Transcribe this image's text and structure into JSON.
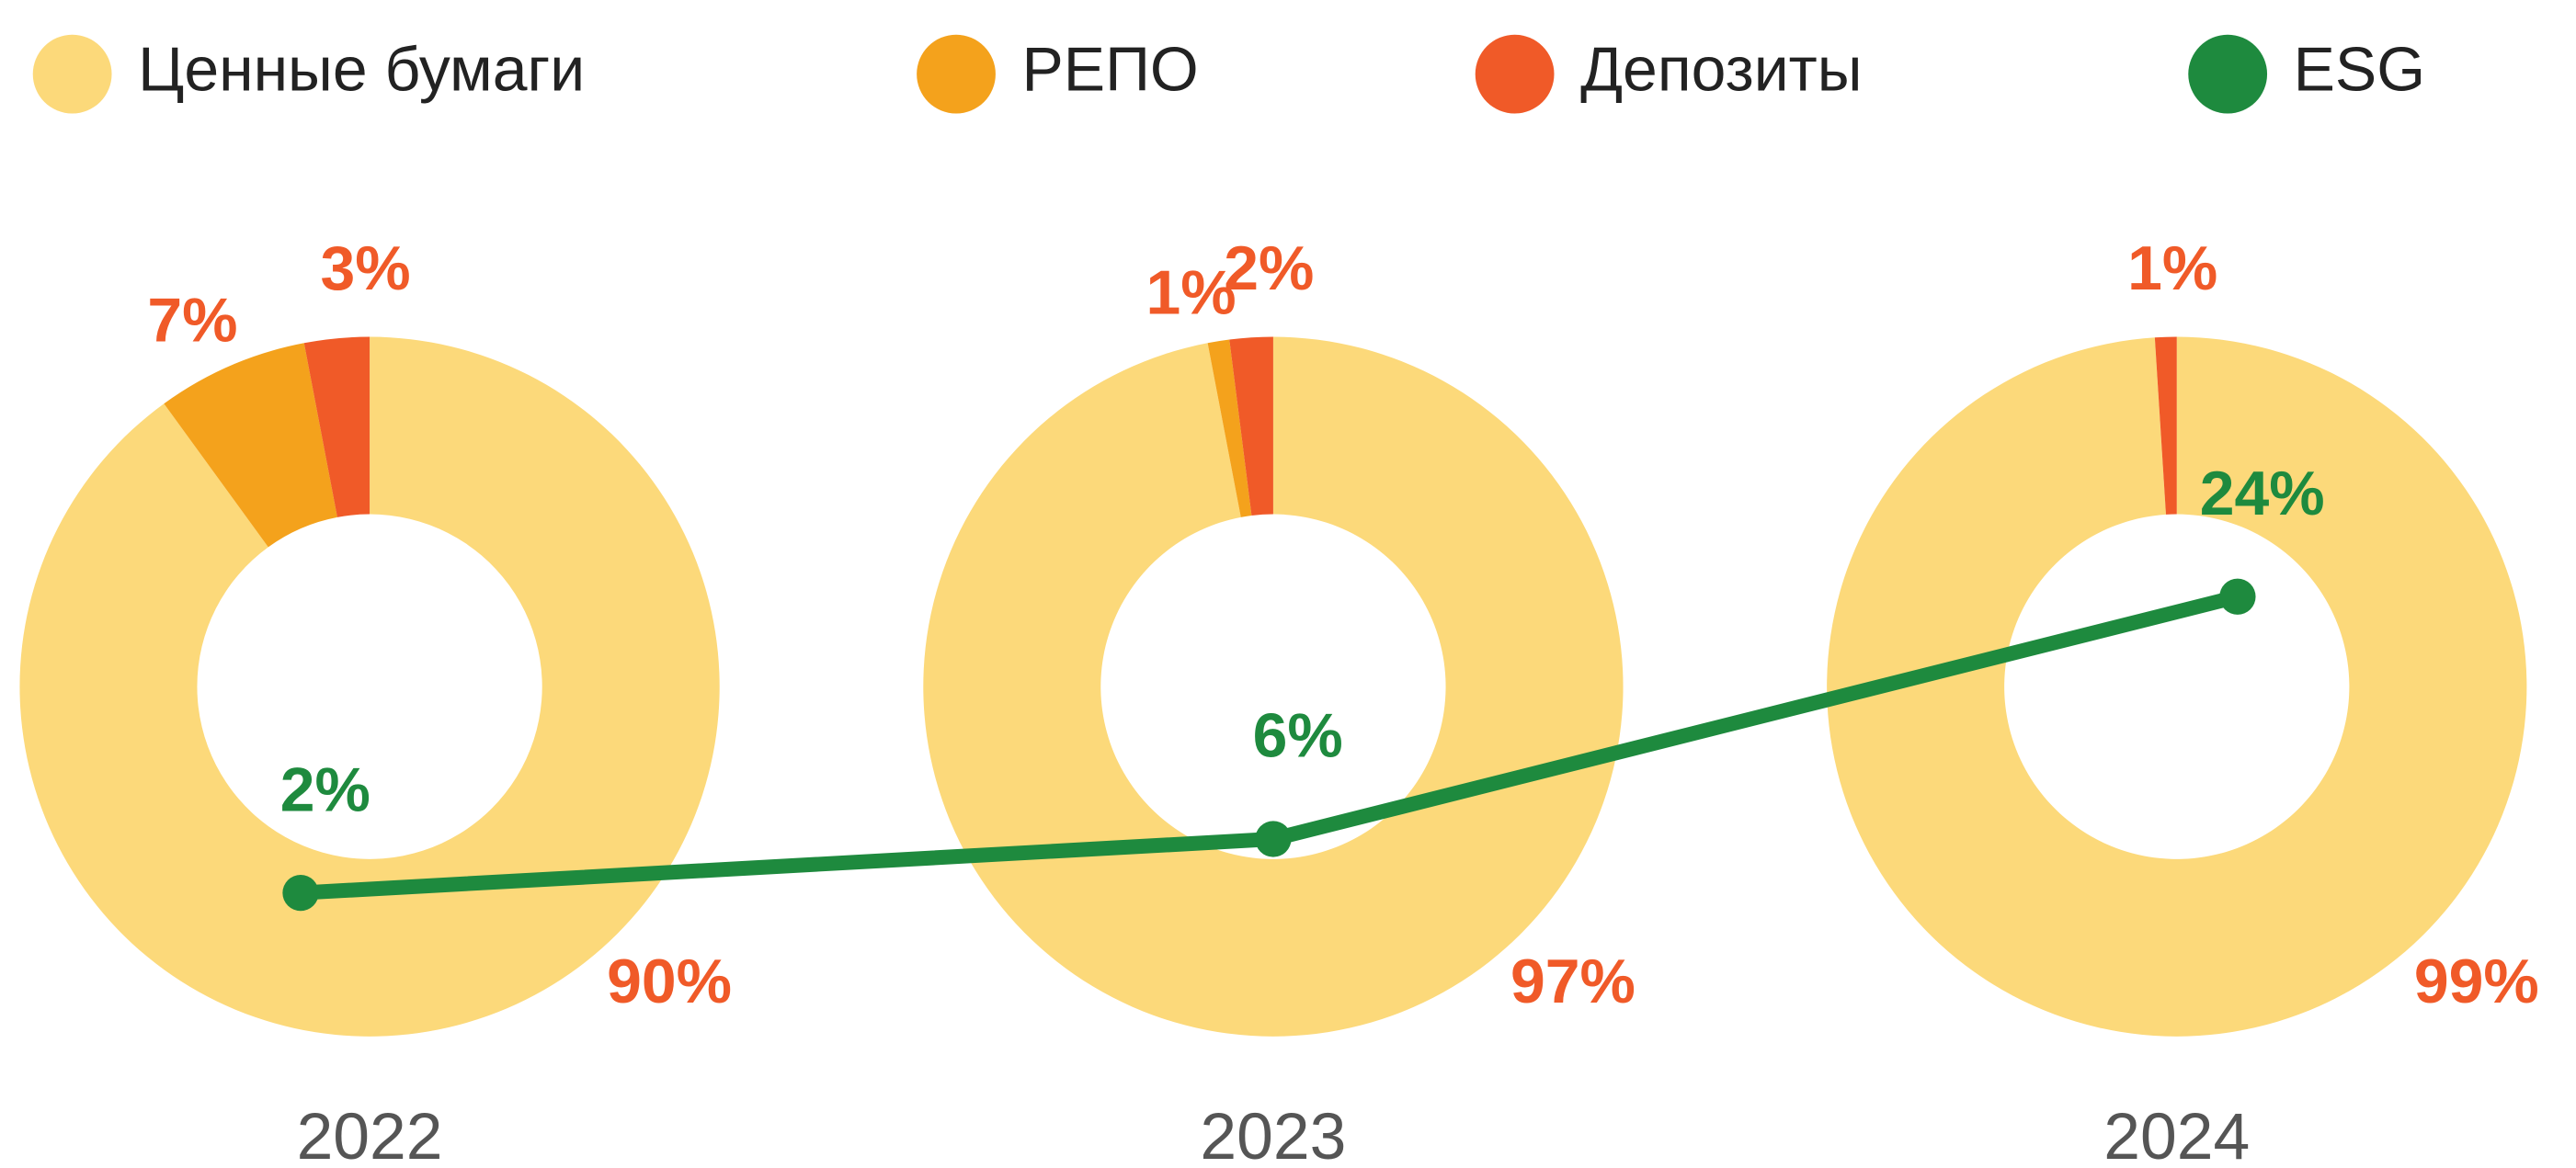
{
  "chart_data": {
    "type": "donut",
    "categories": [
      "2022",
      "2023",
      "2024"
    ],
    "series": [
      {
        "name": "Ценные бумаги",
        "color": "#fcd97a",
        "values": [
          90,
          97,
          99
        ],
        "value_labels": [
          "90%",
          "97%",
          "99%"
        ]
      },
      {
        "name": "РЕПО",
        "color": "#f4a21c",
        "values": [
          7,
          1,
          null
        ],
        "value_labels": [
          "7%",
          "1%",
          null
        ]
      },
      {
        "name": "Депозиты",
        "color": "#f05a28",
        "values": [
          3,
          2,
          1
        ],
        "value_labels": [
          "3%",
          "2%",
          "1%"
        ]
      },
      {
        "name": "ESG",
        "color": "#1e8a3e",
        "type": "line",
        "values": [
          2,
          6,
          24
        ],
        "value_labels": [
          "2%",
          "6%",
          "24%"
        ]
      }
    ],
    "label_color": "#f05a28"
  }
}
